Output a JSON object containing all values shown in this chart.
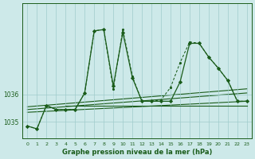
{
  "background_color": "#cde9e9",
  "grid_color": "#a0cccc",
  "line_color": "#1a5c1a",
  "xlabel": "Graphe pression niveau de la mer (hPa)",
  "hours": [
    0,
    1,
    2,
    3,
    4,
    5,
    6,
    7,
    8,
    9,
    10,
    11,
    12,
    13,
    14,
    15,
    16,
    17,
    18,
    19,
    20,
    21,
    22,
    23
  ],
  "main_line": [
    1034.85,
    1034.75,
    1035.6,
    1035.45,
    1035.45,
    1035.45,
    1036.05,
    1038.3,
    1038.35,
    1036.3,
    1038.25,
    1036.6,
    1035.75,
    1035.75,
    1035.75,
    1035.75,
    1036.45,
    1037.85,
    1037.85,
    1037.35,
    1036.95,
    1036.5,
    1035.75,
    1035.75
  ],
  "dotted_line": [
    1034.85,
    1034.75,
    1035.6,
    1035.45,
    1035.45,
    1035.45,
    1036.05,
    1038.3,
    1038.35,
    1036.2,
    1038.35,
    1036.65,
    1035.75,
    1035.75,
    1035.8,
    1036.25,
    1037.15,
    1037.9,
    1037.85,
    1037.35,
    1036.95,
    1036.5,
    1035.75,
    1035.75
  ],
  "flat_line": [
    1035.6,
    1035.6,
    1035.6,
    1035.6,
    1035.6,
    1035.6,
    1035.6,
    1035.6,
    1035.6,
    1035.6,
    1035.6,
    1035.6,
    1035.6,
    1035.6,
    1035.6,
    1035.6,
    1035.6,
    1035.6,
    1035.6,
    1035.6,
    1035.6,
    1035.6,
    1035.6,
    1035.6
  ],
  "trend_lines": [
    [
      1035.55,
      1036.2
    ],
    [
      1035.45,
      1036.05
    ],
    [
      1035.35,
      1035.75
    ]
  ],
  "yticks": [
    1035,
    1036
  ],
  "ylim": [
    1034.4,
    1039.3
  ],
  "xlim": [
    -0.5,
    23.5
  ]
}
